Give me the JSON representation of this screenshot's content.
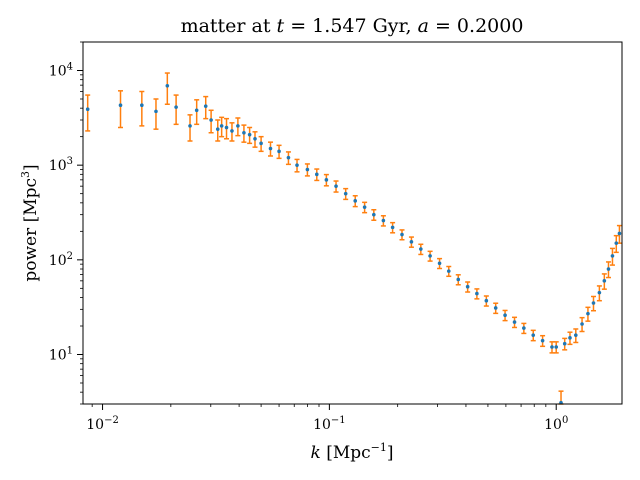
{
  "chart_data": {
    "type": "scatter",
    "title": "matter at t = 1.547 Gyr, a = 0.2000",
    "title_parts": {
      "prefix": "matter at ",
      "t_symbol": "t",
      "t_value": " = 1.547 Gyr, ",
      "a_symbol": "a",
      "a_value": " = 0.2000"
    },
    "xlabel": "k [Mpc⁻¹]",
    "xlabel_parts": {
      "symbol": "k",
      "units": " [Mpc",
      "exp": "−1",
      "close": "]"
    },
    "ylabel": "power [Mpc³]",
    "ylabel_parts": {
      "text": "power [Mpc",
      "exp": "3",
      "close": "]"
    },
    "x_scale": "log",
    "y_scale": "log",
    "xlim": [
      0.0082,
      1.95
    ],
    "ylim": [
      3.0,
      20000
    ],
    "x_ticks": [
      {
        "value": 0.01,
        "base": "10",
        "exp": "−2"
      },
      {
        "value": 0.1,
        "base": "10",
        "exp": "−1"
      },
      {
        "value": 1,
        "base": "10",
        "exp": "0"
      }
    ],
    "y_ticks": [
      {
        "value": 10,
        "base": "10",
        "exp": "1"
      },
      {
        "value": 100,
        "base": "10",
        "exp": "2"
      },
      {
        "value": 1000,
        "base": "10",
        "exp": "3"
      },
      {
        "value": 10000,
        "base": "10",
        "exp": "4"
      }
    ],
    "grid": false,
    "legend": "none",
    "colors": {
      "points": "#1f77b4",
      "errorbars": "#ff7f0e"
    },
    "series": [
      {
        "marker": "point",
        "errorbars": true,
        "x": [
          0.0086,
          0.012,
          0.0149,
          0.0172,
          0.0193,
          0.0211,
          0.0243,
          0.026,
          0.0285,
          0.0301,
          0.0322,
          0.0335,
          0.0352,
          0.0372,
          0.0395,
          0.042,
          0.0445,
          0.047,
          0.05,
          0.055,
          0.06,
          0.066,
          0.072,
          0.08,
          0.088,
          0.097,
          0.107,
          0.118,
          0.13,
          0.143,
          0.157,
          0.173,
          0.19,
          0.209,
          0.23,
          0.253,
          0.278,
          0.306,
          0.336,
          0.37,
          0.407,
          0.447,
          0.492,
          0.541,
          0.595,
          0.655,
          0.72,
          0.792,
          0.871,
          0.958,
          1.0,
          1.05,
          1.09,
          1.15,
          1.22,
          1.3,
          1.38,
          1.46,
          1.55,
          1.63,
          1.7,
          1.77,
          1.84,
          1.9
        ],
        "y": [
          3900,
          4300,
          4300,
          3700,
          6900,
          4100,
          2600,
          3800,
          4200,
          3000,
          2400,
          2600,
          2500,
          2300,
          2600,
          2200,
          2100,
          1900,
          1700,
          1500,
          1400,
          1200,
          1000,
          900,
          800,
          700,
          600,
          500,
          420,
          360,
          300,
          260,
          220,
          185,
          155,
          130,
          110,
          92,
          76,
          62,
          52,
          44,
          37,
          31,
          26,
          22,
          19,
          16,
          14,
          12,
          12,
          3.1,
          13,
          15,
          16,
          21,
          27,
          35,
          45,
          60,
          80,
          110,
          150,
          190
        ],
        "err": [
          1600,
          1800,
          1700,
          1300,
          2500,
          1400,
          800,
          1100,
          1100,
          800,
          600,
          600,
          600,
          500,
          550,
          450,
          400,
          350,
          300,
          250,
          220,
          180,
          150,
          130,
          110,
          95,
          80,
          65,
          55,
          45,
          38,
          32,
          27,
          22,
          19,
          16,
          13,
          11,
          9,
          7.5,
          6.3,
          5.3,
          4.5,
          3.8,
          3.2,
          2.7,
          2.3,
          2.0,
          1.8,
          1.6,
          1.6,
          1.0,
          1.8,
          2.2,
          2.6,
          3.5,
          4.5,
          6,
          8,
          11,
          15,
          22,
          30,
          40
        ]
      }
    ]
  }
}
